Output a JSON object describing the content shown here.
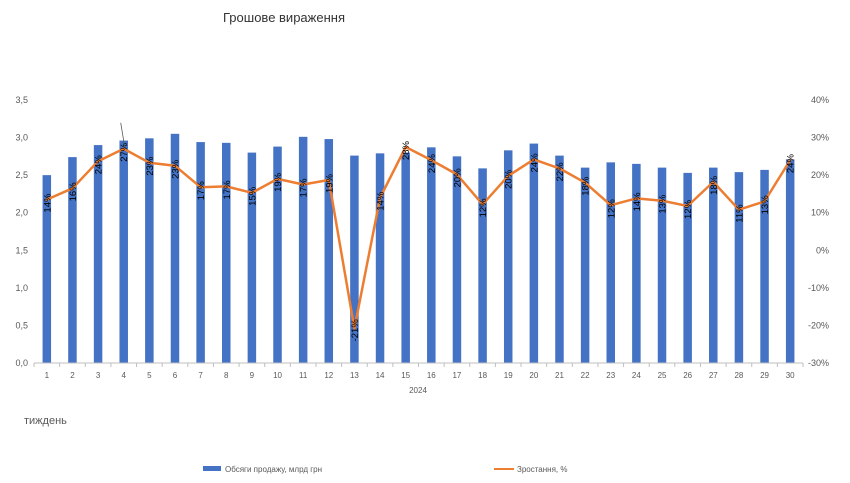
{
  "chart_data": {
    "type": "bar",
    "title": "Грошове вираження",
    "categories": [
      "1",
      "2",
      "3",
      "4",
      "5",
      "6",
      "7",
      "8",
      "9",
      "10",
      "11",
      "12",
      "13",
      "14",
      "15",
      "16",
      "17",
      "18",
      "19",
      "20",
      "21",
      "22",
      "23",
      "24",
      "25",
      "26",
      "27",
      "28",
      "29",
      "30"
    ],
    "category_group": "2024",
    "xlabel": "тиждень",
    "series": [
      {
        "name": "Обсяги продажу, млрд грн",
        "type": "bar",
        "axis": "left",
        "color": "#4472C4",
        "values": [
          2.5,
          2.74,
          2.9,
          2.96,
          2.99,
          3.05,
          2.94,
          2.93,
          2.8,
          2.88,
          3.01,
          2.98,
          2.76,
          2.79,
          2.8,
          2.87,
          2.75,
          2.59,
          2.83,
          2.92,
          2.76,
          2.6,
          2.67,
          2.65,
          2.6,
          2.53,
          2.6,
          2.54,
          2.57,
          2.71
        ]
      },
      {
        "name": "Зростання, %",
        "type": "line",
        "axis": "right",
        "color": "#ED7D31",
        "values": [
          13.5,
          16.5,
          23.7,
          27.0,
          23.3,
          22.5,
          16.8,
          17.0,
          15.3,
          19.0,
          17.5,
          18.7,
          -20.8,
          14.0,
          27.5,
          24.0,
          20.2,
          12.2,
          19.8,
          24.2,
          21.8,
          18.0,
          12.0,
          13.8,
          13.2,
          11.8,
          18.2,
          10.8,
          13.0,
          24.0
        ],
        "labels": [
          "14%",
          "16%",
          "24%",
          "27%",
          "23%",
          "23%",
          "17%",
          "17%",
          "15%",
          "19%",
          "17%",
          "19%",
          "-21%",
          "14%",
          "28%",
          "24%",
          "20%",
          "12%",
          "20%",
          "24%",
          "22%",
          "18%",
          "12%",
          "14%",
          "13%",
          "12%",
          "18%",
          "11%",
          "13%",
          "24%"
        ]
      }
    ],
    "y_left": {
      "min": 0,
      "max": 3.5,
      "step": 0.5,
      "tick_labels": [
        "0,0",
        "0,5",
        "1,0",
        "1,5",
        "2,0",
        "2,5",
        "3,0",
        "3,5"
      ]
    },
    "y_right": {
      "min": -30,
      "max": 40,
      "step": 10,
      "tick_labels": [
        "-30%",
        "-20%",
        "-10%",
        "0%",
        "10%",
        "20%",
        "30%",
        "40%"
      ]
    },
    "grid": false,
    "legend_position": "bottom"
  }
}
